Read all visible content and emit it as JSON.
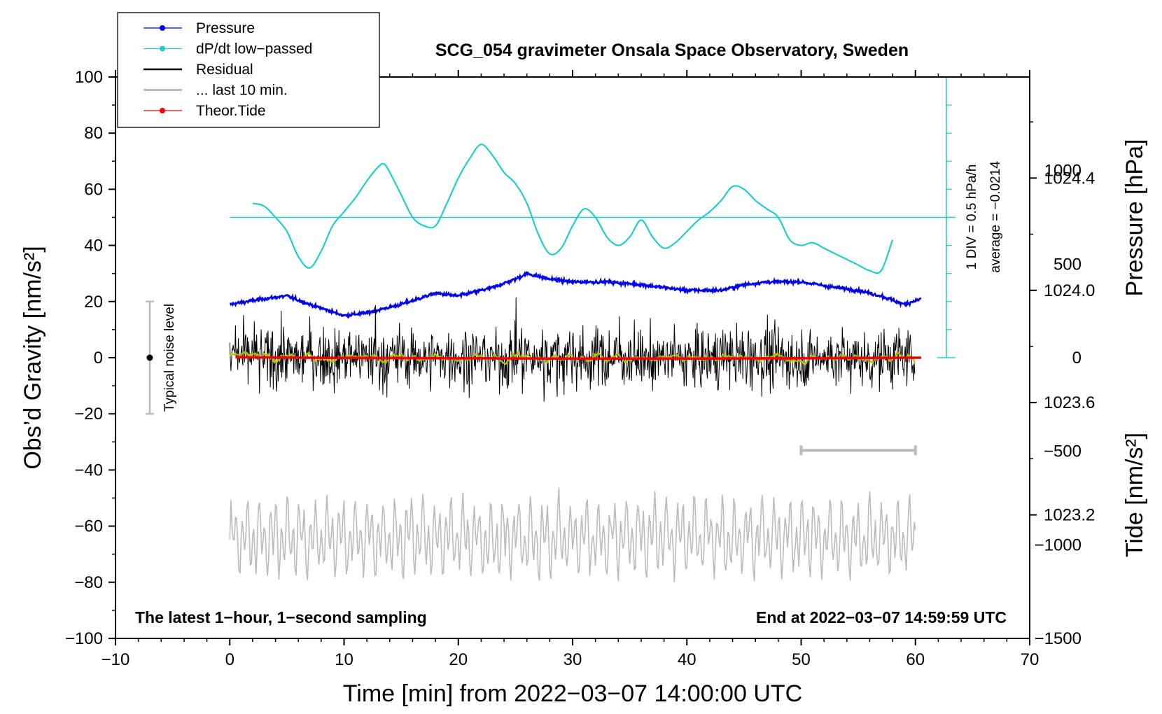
{
  "chart_data": {
    "type": "line",
    "title": "SCG_054 gravimeter Onsala Space Observatory, Sweden",
    "xlabel": "Time [min] from 2022−03−07 14:00:00 UTC",
    "ylabel_left": "Obs’d Gravity [nm/s²]",
    "ylabel_right_top": "Pressure [hPa]",
    "ylabel_right_bottom": "Tide [nm/s²]",
    "xlim": [
      -10,
      70
    ],
    "ylim": [
      -100,
      100
    ],
    "pressure_ylim": [
      1022.76,
      1024.76
    ],
    "tide_ylim": [
      -1500,
      1500
    ],
    "x_ticks": [
      "−10",
      "0",
      "10",
      "20",
      "30",
      "40",
      "50",
      "60",
      "70"
    ],
    "x_tick_values": [
      -10,
      0,
      10,
      20,
      30,
      40,
      50,
      60,
      70
    ],
    "y_ticks": [
      "100",
      "80",
      "60",
      "40",
      "20",
      "0",
      "−20",
      "−40",
      "−60",
      "−80",
      "−100"
    ],
    "y_tick_values": [
      100,
      80,
      60,
      40,
      20,
      0,
      -20,
      -40,
      -60,
      -80,
      -100
    ],
    "pressure_ticks": [
      "1024.4",
      "1024.0",
      "1023.6",
      "1023.2"
    ],
    "pressure_tick_values": [
      1024.4,
      1024.0,
      1023.6,
      1023.2
    ],
    "tide_ticks": [
      "1000",
      "500",
      "0",
      "−500",
      "−1000",
      "−1500"
    ],
    "tide_tick_values": [
      1000,
      500,
      0,
      -500,
      -1000,
      -1500
    ],
    "legend": [
      "Pressure",
      "dP/dt low−passed",
      "Residual",
      "... last 10 min.",
      "Theor.Tide"
    ],
    "notes": {
      "left": "The latest 1−hour, 1−second sampling",
      "right": "End at 2022−03−07 14:59:59 UTC",
      "noise": "Typical noise level",
      "dpdt_scale": "1 DIV = 0.5 hPa/h",
      "dpdt_average": "average = −0.0214"
    },
    "colors": {
      "pressure": "#0000ee",
      "dpdt": "#22cccc",
      "residual": "#000000",
      "residual_smooth": "#bbbb00",
      "last10": "#bbbbbb",
      "tide": "#ee0000"
    },
    "series": [
      {
        "name": "Pressure",
        "unit": "hPa",
        "x": [
          0,
          3,
          5,
          7,
          10,
          12,
          15,
          18,
          20,
          23,
          25,
          26,
          28,
          30,
          33,
          36,
          38,
          40,
          43,
          45,
          47,
          50,
          53,
          55,
          57,
          59,
          60.5
        ],
        "y": [
          1023.95,
          1023.97,
          1023.98,
          1023.95,
          1023.91,
          1023.92,
          1023.95,
          1023.99,
          1023.98,
          1024.01,
          1024.04,
          1024.06,
          1024.04,
          1024.03,
          1024.03,
          1024.02,
          1024.01,
          1024.0,
          1024.0,
          1024.02,
          1024.03,
          1024.03,
          1024.01,
          1024.0,
          1023.98,
          1023.95,
          1023.97
        ]
      },
      {
        "name": "dP/dt low−passed",
        "unit": "nm/s² plot scale (1 DIV = 0.5 hPa/h)",
        "x": [
          2,
          3,
          4,
          5,
          6,
          7,
          8,
          9,
          10,
          11,
          12,
          13,
          13.5,
          14,
          15,
          16,
          17,
          18,
          19,
          20,
          21,
          22,
          23,
          24,
          25,
          26,
          27,
          28,
          29,
          30,
          31,
          32,
          33,
          34,
          35,
          36,
          37,
          38,
          39,
          40,
          41,
          42,
          43,
          44,
          45,
          46,
          47,
          48,
          49,
          50,
          51,
          52,
          53,
          54,
          55,
          56,
          57,
          58
        ],
        "y": [
          55,
          54,
          50,
          45,
          36,
          32,
          38,
          47,
          52,
          57,
          63,
          68,
          69,
          66,
          58,
          50,
          47,
          47,
          55,
          64,
          71,
          76,
          72,
          66,
          62,
          55,
          44,
          37,
          39,
          47,
          53,
          50,
          43,
          40,
          43,
          49,
          43,
          39,
          41,
          45,
          49,
          52,
          56,
          61,
          60,
          56,
          53,
          50,
          42,
          40,
          41,
          39,
          37,
          35,
          33,
          31,
          31,
          42
        ]
      },
      {
        "name": "Theor.Tide",
        "unit": "nm/s²",
        "x": [
          0.5,
          10,
          20,
          30,
          40,
          50,
          60.5
        ],
        "y": [
          2,
          -1,
          -3,
          -5,
          -5,
          -3,
          0
        ]
      }
    ]
  }
}
